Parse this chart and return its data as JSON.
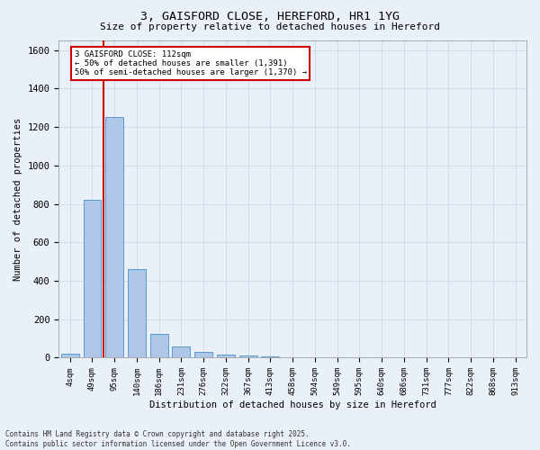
{
  "title": "3, GAISFORD CLOSE, HEREFORD, HR1 1YG",
  "subtitle": "Size of property relative to detached houses in Hereford",
  "xlabel": "Distribution of detached houses by size in Hereford",
  "ylabel": "Number of detached properties",
  "footer_line1": "Contains HM Land Registry data © Crown copyright and database right 2025.",
  "footer_line2": "Contains public sector information licensed under the Open Government Licence v3.0.",
  "categories": [
    "4sqm",
    "49sqm",
    "95sqm",
    "140sqm",
    "186sqm",
    "231sqm",
    "276sqm",
    "322sqm",
    "367sqm",
    "413sqm",
    "458sqm",
    "504sqm",
    "549sqm",
    "595sqm",
    "640sqm",
    "686sqm",
    "731sqm",
    "777sqm",
    "822sqm",
    "868sqm",
    "913sqm"
  ],
  "values": [
    22,
    820,
    1250,
    460,
    125,
    58,
    28,
    18,
    10,
    5,
    2,
    0,
    0,
    0,
    0,
    0,
    0,
    0,
    0,
    0,
    0
  ],
  "bar_color": "#aec6e8",
  "bar_edge_color": "#5b9bd5",
  "grid_color": "#d0d8e8",
  "background_color": "#eaf0f8",
  "red_line_x": 1.5,
  "annotation_text": "3 GAISFORD CLOSE: 112sqm\n← 50% of detached houses are smaller (1,391)\n50% of semi-detached houses are larger (1,370) →",
  "annotation_box_color": "#ffffff",
  "annotation_box_edge": "#cc0000",
  "red_line_color": "#cc0000",
  "ylim": [
    0,
    1650
  ],
  "yticks": [
    0,
    200,
    400,
    600,
    800,
    1000,
    1200,
    1400,
    1600
  ]
}
